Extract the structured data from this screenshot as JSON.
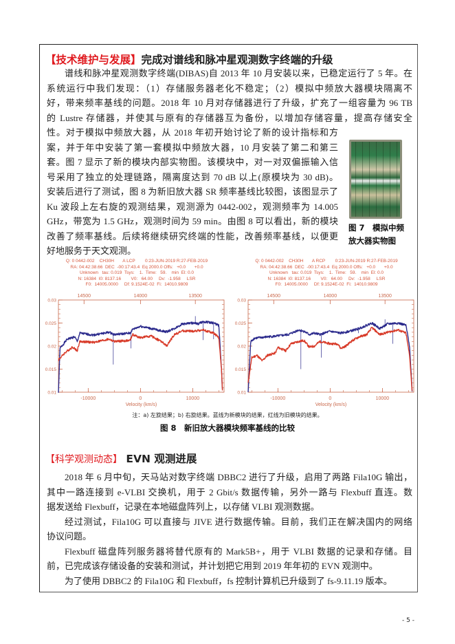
{
  "section1": {
    "tag": "【技术维护与发展】",
    "title": "完成对谱线和脉冲星观测数字终端的升级",
    "lines": [
      {
        "text": "谱线和脉冲星观测数字终端(DIBAS)自 2013 年 10 月安装以来，已稳定运行了 5 年。在",
        "indent": true
      },
      {
        "text": "系统运行中我们发现：（1）存储服务器老化不稳定；（2）模拟中频放大器模块隔离不"
      },
      {
        "text": "好，带来频率基线的问题。2018 年 10 月对存储器进行了升级，扩充了一组容量为 96 TB"
      },
      {
        "text": "的 Lustre 存储器，并使其与原有的存储器互为备份，以增加存储容量，提高存储安全"
      },
      {
        "text": "性。对于模拟中频放大器，从 2018 年初开始讨论了新的设计指标和方",
        "narrow": true
      },
      {
        "text": "案，并于年中安装了第一套模拟中频放大器，10 月安装了第二和第三",
        "narrow": true
      },
      {
        "text": "套。图 7 显示了新的模块内部实物图。该模块中，对一对双偏振输入信",
        "narrow": true
      },
      {
        "text": "号采用了独立的处理链路，隔离度达到 70 dB 以上(原模块为 30 dB)。",
        "narrow": true
      },
      {
        "text": "安装后进行了测试，图 8 为新旧放大器 SR 频率基线比较图，该图显示了",
        "narrow": true
      },
      {
        "text": "Ku 波段上左右旋的观测结果，观测源为 0442-002，观测频率为 14.005",
        "narrow": true
      },
      {
        "text": "GHz，带宽为 1.5 GHz，观测时间为 59 min。由图 8 可以看出，新的模块",
        "narrow": true
      },
      {
        "text": "改善了频率基线。后续将继续研究终端的性能，改善频率基线，以便更",
        "narrow": true
      },
      {
        "text": "好地服务于天文观测。",
        "narrow": true,
        "last": true
      }
    ],
    "figure7_caption": "图 7　模拟中频放大器实物图",
    "figure8_note": "注：a) 左旋结果；b) 右旋结果。蓝线为新模块的结果，红线为旧模块的结果。",
    "figure8_caption": "图 8　新旧放大器模块频率基线的比较"
  },
  "section2": {
    "tag": "【科学观测动态】",
    "title": " EVN 观测进展",
    "lines": [
      {
        "text": "2018 年 6 月中旬，天马站对数字终端 DBBC2 进行了升级，启用了两路 Fila10G 输出，",
        "indent": true
      },
      {
        "text": "其中一路连接到 e-VLBI 交换机，用于 2 Gbit/s 数据传输，另外一路与 Flexbuff 直连。数"
      },
      {
        "text": "据发送给 Flexbuff，记录在本地磁盘阵列上，以存储 VLBI 观测数据。",
        "last": true
      },
      {
        "text": "经过测试，Fila10G 可以直接与 JIVE 进行数据传输。目前，我们正在解决国内的网络",
        "indent": true
      },
      {
        "text": "协议问题。",
        "last": true
      },
      {
        "text": "Flexbuff 磁盘阵列服务器将替代原有的 Mark5B+，用于 VLBI 数据的记录和存储。目",
        "indent": true
      },
      {
        "text": "前，已完成该存储设备的安装和测试，并计划把它用到 2019 年年初的 EVN 观测中。",
        "last": true
      },
      {
        "text": "为了使用 DBBC2 的 Fila10G 和 Flexbuff，fs 控制计算机已升级到了 fs-9.11.19 版本。",
        "indent": true,
        "last": true
      }
    ]
  },
  "page_number": "- 5 -",
  "colors": {
    "tag_red": "#e0191e",
    "new_module_blue": "#2b2a8c",
    "old_module_red": "#d83a28",
    "axis": "#c9674a"
  },
  "chart_data": [
    {
      "type": "line",
      "header": [
        "Q: 0 0442-002    CH30H       A LCP        0:23-JUN-2019 R:27-FEB-2019",
        "RA: 04:42:38.66  DEC  -00:17:43.4  Eq 2000.0 Offs:   +0.0       +0.0",
        "Unknown   tau: 0.019  Tsys:    1.  Time:   59.    min  El: 0.0",
        "N: 16384  I0: 8137.16        V0:   64.00     Dv:  -1.958     LSR",
        "F0:  14005.0000     Df: 9.1524E-02  Fi:  14010.9809"
      ],
      "xlabel": "Velocity (km/s)",
      "xlim": [
        -15700,
        16000
      ],
      "ylim": [
        0.01,
        0.03
      ],
      "xticks": [
        -10000,
        0,
        10000
      ],
      "yticks": [
        0.01,
        0.015,
        0.02,
        0.025,
        0.03
      ],
      "ytick_labels": [
        "0.01",
        "0.015",
        "0.02",
        "0.025",
        "0.03"
      ],
      "top_ticks": [
        {
          "label": "14500",
          "velocity": -10800
        },
        {
          "label": "14000",
          "velocity": 0
        },
        {
          "label": "13500",
          "velocity": 10500
        }
      ],
      "series": [
        {
          "color": "#2b2a8c",
          "points": [
            [
              -15700,
              0.01
            ],
            [
              -15400,
              0.0195
            ],
            [
              -14000,
              0.0215
            ],
            [
              -12600,
              0.022
            ],
            [
              -12100,
              0.021
            ],
            [
              -11600,
              0.0228
            ],
            [
              -9000,
              0.0224
            ],
            [
              -6000,
              0.023
            ],
            [
              -5000,
              0.0225
            ],
            [
              -2000,
              0.0228
            ],
            [
              -1500,
              0.0236
            ],
            [
              0,
              0.0243
            ],
            [
              2000,
              0.0238
            ],
            [
              4000,
              0.0233
            ],
            [
              5000,
              0.0231
            ],
            [
              6500,
              0.0238
            ],
            [
              8000,
              0.0248
            ],
            [
              10000,
              0.025
            ],
            [
              11000,
              0.0248
            ],
            [
              12000,
              0.0253
            ],
            [
              14000,
              0.025
            ],
            [
              15000,
              0.0245
            ],
            [
              15500,
              0.015
            ],
            [
              15700,
              0.01
            ]
          ],
          "spikes": [
            [
              -5200,
              0.016
            ],
            [
              -1800,
              0.0195
            ],
            [
              10500,
              0.0265
            ],
            [
              12000,
              0.0213
            ],
            [
              14000,
              0.0215
            ]
          ]
        },
        {
          "color": "#d83a28",
          "points": [
            [
              -15700,
              0.017
            ],
            [
              -14500,
              0.0185
            ],
            [
              -13000,
              0.0198
            ],
            [
              -12100,
              0.019
            ],
            [
              -11600,
              0.021
            ],
            [
              -9000,
              0.0208
            ],
            [
              -6000,
              0.0215
            ],
            [
              -5000,
              0.021
            ],
            [
              -2000,
              0.0212
            ],
            [
              -1500,
              0.0225
            ],
            [
              0,
              0.0218
            ],
            [
              2000,
              0.0222
            ],
            [
              4000,
              0.021
            ],
            [
              5000,
              0.02
            ],
            [
              6500,
              0.0225
            ],
            [
              8000,
              0.0233
            ],
            [
              10000,
              0.0232
            ],
            [
              12000,
              0.0235
            ],
            [
              14000,
              0.0228
            ],
            [
              15000,
              0.0218
            ],
            [
              15500,
              0.015
            ],
            [
              15700,
              0.01
            ]
          ],
          "spikes": []
        }
      ]
    },
    {
      "type": "line",
      "header": [
        "Q: 0 0442-002    CH30H       A RCP        0:23-JUN-2019 R:27-FEB-2019",
        "RA: 04:42:38.66  DEC  -00:17:43.4  Eq 2000.0 Offs:   +0.0       +0.0",
        "Unknown   tau: 0.019  Tsys:    1.  Time:   59.    min  El: 0.0",
        "N: 16384  I0: 8137.16        V0:   64.00     Dv:  -1.958     LSR",
        "F0:  14005.0000     Df: 9.1524E-02  Fi:  14010.9809"
      ],
      "xlabel": "Velocity (km/s)",
      "xlim": [
        -15700,
        16000
      ],
      "ylim": [
        0.01,
        0.03
      ],
      "xticks": [
        -10000,
        0,
        10000
      ],
      "yticks": [
        0.01,
        0.015,
        0.02,
        0.025,
        0.03
      ],
      "ytick_labels": [
        "0.01",
        "0.015",
        "0.02",
        "0.025",
        "0.03"
      ],
      "top_ticks": [
        {
          "label": "14500",
          "velocity": -10800
        },
        {
          "label": "14000",
          "velocity": 0
        },
        {
          "label": "13500",
          "velocity": 10500
        }
      ],
      "series": [
        {
          "color": "#2b2a8c",
          "points": [
            [
              -15700,
              0.01
            ],
            [
              -15200,
              0.021
            ],
            [
              -14500,
              0.0217
            ],
            [
              -12000,
              0.022
            ],
            [
              -10000,
              0.0222
            ],
            [
              -8000,
              0.0225
            ],
            [
              -6000,
              0.0235
            ],
            [
              -5000,
              0.0232
            ],
            [
              -4000,
              0.0225
            ],
            [
              -3000,
              0.0228
            ],
            [
              -2000,
              0.0225
            ],
            [
              0,
              0.0232
            ],
            [
              2000,
              0.0228
            ],
            [
              4000,
              0.0233
            ],
            [
              5500,
              0.0238
            ],
            [
              8000,
              0.025
            ],
            [
              9500,
              0.0238
            ],
            [
              11000,
              0.0248
            ],
            [
              13000,
              0.025
            ],
            [
              14500,
              0.0245
            ],
            [
              15200,
              0.02
            ],
            [
              15700,
              0.01
            ]
          ],
          "spikes": [
            [
              -5600,
              0.015
            ],
            [
              -1700,
              0.0175
            ],
            [
              5400,
              0.0228
            ],
            [
              10500,
              0.0258
            ],
            [
              12000,
              0.0205
            ]
          ]
        },
        {
          "color": "#d83a28",
          "points": [
            [
              -15700,
              0.012
            ],
            [
              -15000,
              0.0175
            ],
            [
              -14000,
              0.018
            ],
            [
              -13000,
              0.0168
            ],
            [
              -12000,
              0.018
            ],
            [
              -10500,
              0.0185
            ],
            [
              -10000,
              0.0197
            ],
            [
              -8500,
              0.019
            ],
            [
              -7500,
              0.0205
            ],
            [
              -6000,
              0.021
            ],
            [
              -5000,
              0.0212
            ],
            [
              -4000,
              0.0198
            ],
            [
              -3000,
              0.02
            ],
            [
              -2000,
              0.021
            ],
            [
              0,
              0.0205
            ],
            [
              1500,
              0.0205
            ],
            [
              2000,
              0.0195
            ],
            [
              3000,
              0.02
            ],
            [
              4000,
              0.021
            ],
            [
              5500,
              0.022
            ],
            [
              7000,
              0.0225
            ],
            [
              8000,
              0.024
            ],
            [
              9500,
              0.0225
            ],
            [
              11000,
              0.023
            ],
            [
              13000,
              0.0235
            ],
            [
              14500,
              0.0228
            ],
            [
              15200,
              0.018
            ],
            [
              15700,
              0.01
            ]
          ],
          "spikes": []
        }
      ]
    }
  ]
}
